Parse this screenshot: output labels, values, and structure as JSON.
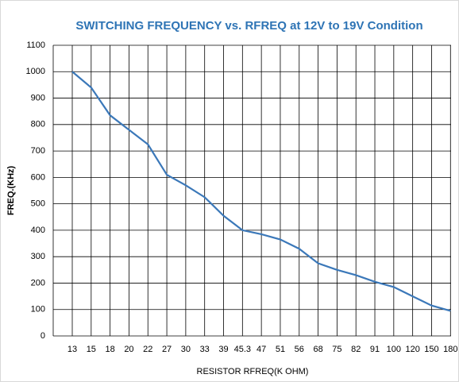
{
  "chart_data": {
    "type": "line",
    "title": "SWITCHING FREQUENCY vs. RFREQ at 12V to 19V Condition",
    "x_label": "RESISTOR RFREQ(K OHM)",
    "y_label": "FREQ.(KHz)",
    "categories": [
      "13",
      "15",
      "18",
      "20",
      "22",
      "27",
      "30",
      "33",
      "39",
      "45.3",
      "47",
      "51",
      "56",
      "68",
      "75",
      "82",
      "91",
      "100",
      "120",
      "150",
      "180"
    ],
    "series": [
      {
        "name": "FREQ",
        "color": "#3b78b9",
        "values": [
          1000,
          940,
          835,
          780,
          725,
          610,
          570,
          525,
          455,
          400,
          385,
          365,
          330,
          275,
          250,
          230,
          205,
          185,
          150,
          115,
          95
        ]
      }
    ],
    "ylim": [
      0,
      1100
    ],
    "yticks": [
      0,
      100,
      200,
      300,
      400,
      500,
      600,
      700,
      800,
      900,
      1000,
      1100
    ],
    "grid": true
  }
}
